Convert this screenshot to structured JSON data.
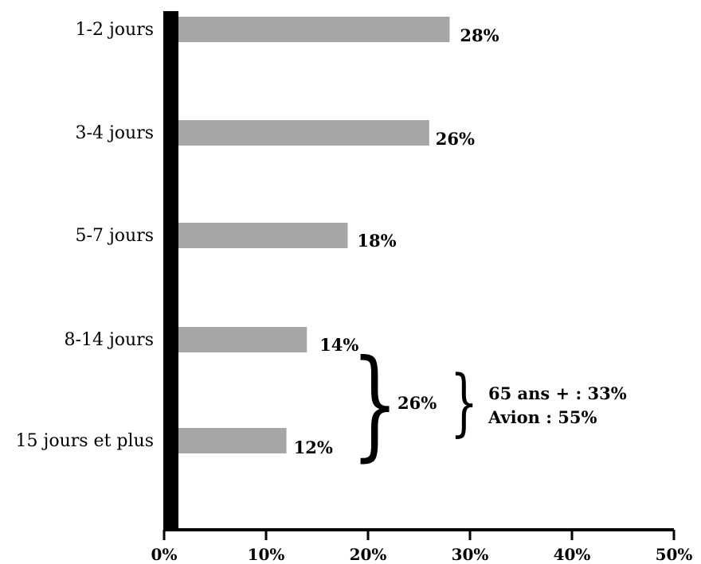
{
  "chart_data": {
    "type": "bar",
    "orientation": "horizontal",
    "title": "",
    "xlabel": "",
    "ylabel": "",
    "categories": [
      "1-2 jours",
      "3-4 jours",
      "5-7 jours",
      "8-14 jours",
      "15 jours et plus"
    ],
    "values": [
      28,
      26,
      18,
      14,
      12
    ],
    "value_labels": [
      "28%",
      "26%",
      "18%",
      "14%",
      "12%"
    ],
    "xlim": [
      0,
      50
    ],
    "x_ticks": [
      "0%",
      "10%",
      "20%",
      "30%",
      "40%",
      "50%"
    ],
    "bar_color": "#a6a6a6",
    "grid": false,
    "annotations": {
      "group_total": "26%",
      "detail_line1": "65 ans + : 33%",
      "detail_line2": "Avion : 55%"
    }
  }
}
